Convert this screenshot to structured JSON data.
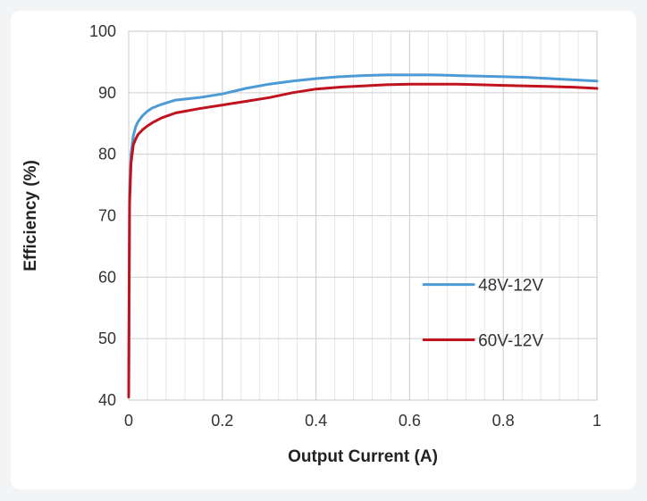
{
  "chart_data": {
    "type": "line",
    "xlabel": "Output Current (A)",
    "ylabel": "Efficiency (%)",
    "xlim": [
      0,
      1
    ],
    "ylim": [
      40,
      100
    ],
    "xticks": [
      0,
      0.2,
      0.4,
      0.6,
      0.8,
      1
    ],
    "xtick_labels": [
      "0",
      "0.2",
      "0.4",
      "0.6",
      "0.8",
      "1"
    ],
    "yticks": [
      40,
      50,
      60,
      70,
      80,
      90,
      100
    ],
    "ytick_labels": [
      "40",
      "50",
      "60",
      "70",
      "80",
      "90",
      "100"
    ],
    "grid": true,
    "legend": "center-right",
    "series": [
      {
        "name": "48V-12V",
        "color": "#4d9bd6",
        "x": [
          0,
          0.002,
          0.005,
          0.01,
          0.015,
          0.02,
          0.03,
          0.04,
          0.05,
          0.07,
          0.1,
          0.15,
          0.2,
          0.25,
          0.3,
          0.35,
          0.4,
          0.45,
          0.5,
          0.55,
          0.6,
          0.65,
          0.7,
          0.75,
          0.8,
          0.85,
          0.9,
          0.95,
          1
        ],
        "y": [
          41,
          74,
          80,
          83,
          84.5,
          85.3,
          86.3,
          87,
          87.5,
          88.1,
          88.8,
          89.2,
          89.8,
          90.7,
          91.4,
          91.9,
          92.3,
          92.6,
          92.8,
          92.9,
          92.9,
          92.9,
          92.8,
          92.7,
          92.6,
          92.5,
          92.3,
          92.1,
          91.9
        ]
      },
      {
        "name": "60V-12V",
        "color": "#c0131f",
        "x": [
          0,
          0.002,
          0.005,
          0.01,
          0.015,
          0.02,
          0.03,
          0.04,
          0.05,
          0.07,
          0.1,
          0.15,
          0.2,
          0.25,
          0.3,
          0.35,
          0.4,
          0.45,
          0.5,
          0.55,
          0.6,
          0.65,
          0.7,
          0.75,
          0.8,
          0.85,
          0.9,
          0.95,
          1
        ],
        "y": [
          40.5,
          72,
          78.5,
          81.5,
          82.5,
          83.2,
          84,
          84.6,
          85.1,
          85.9,
          86.7,
          87.4,
          88,
          88.6,
          89.2,
          90,
          90.6,
          90.9,
          91.1,
          91.3,
          91.4,
          91.4,
          91.4,
          91.3,
          91.2,
          91.1,
          91,
          90.9,
          90.7
        ]
      }
    ]
  }
}
